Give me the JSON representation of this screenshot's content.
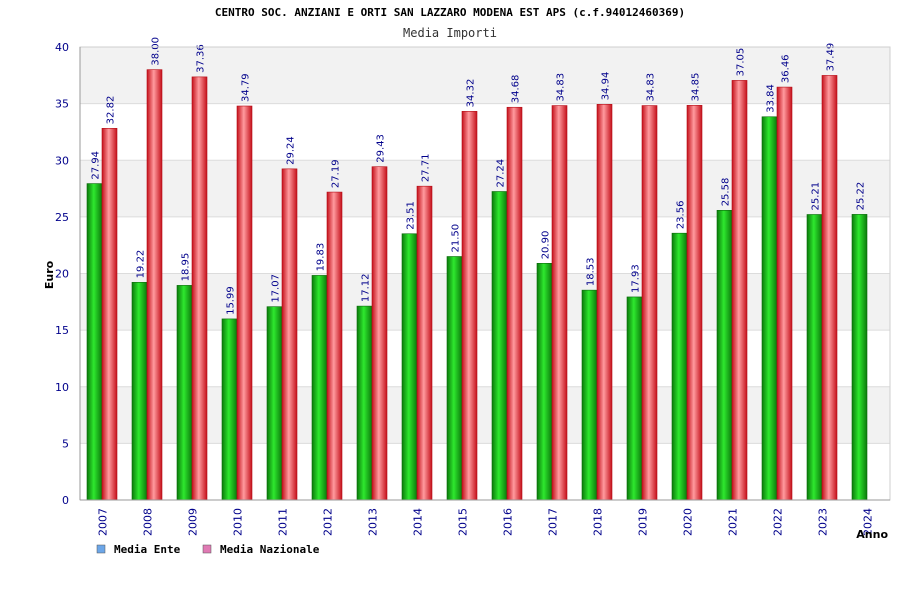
{
  "chart_data": {
    "type": "bar",
    "title": "CENTRO SOC. ANZIANI E ORTI SAN LAZZARO MODENA EST APS (c.f.94012460369)",
    "subtitle": "Media Importi",
    "xlabel": "Anno",
    "ylabel": "Euro",
    "ylim": [
      0,
      40
    ],
    "yticks": [
      0,
      5,
      10,
      15,
      20,
      25,
      30,
      35,
      40
    ],
    "grid": true,
    "legend_position": "bottom-left",
    "categories": [
      "2007",
      "2008",
      "2009",
      "2010",
      "2011",
      "2012",
      "2013",
      "2014",
      "2015",
      "2016",
      "2017",
      "2018",
      "2019",
      "2020",
      "2021",
      "2022",
      "2023",
      "2024"
    ],
    "series": [
      {
        "name": "Media Ente",
        "color": "#1aa31a",
        "legend_color": "#6ca6e8",
        "values": [
          27.94,
          19.22,
          18.95,
          15.99,
          17.07,
          19.83,
          17.12,
          23.51,
          21.5,
          27.24,
          20.9,
          18.53,
          17.93,
          23.56,
          25.58,
          33.84,
          25.21,
          25.22
        ],
        "labels": [
          "27.94",
          "19.22",
          "18.95",
          "15.99",
          "17.07",
          "19.83",
          "17.12",
          "23.51",
          "21.50",
          "27.24",
          "20.90",
          "18.53",
          "17.93",
          "23.56",
          "25.58",
          "33.84",
          "25.21",
          "25.22"
        ]
      },
      {
        "name": "Media Nazionale",
        "color": "#e8202a",
        "legend_color": "#e07ab4",
        "values": [
          32.82,
          38.0,
          37.36,
          34.79,
          29.24,
          27.19,
          29.43,
          27.71,
          34.32,
          34.68,
          34.83,
          34.94,
          34.83,
          34.85,
          37.05,
          36.46,
          37.49,
          null
        ],
        "labels": [
          "32.82",
          "38.00",
          "37.36",
          "34.79",
          "29.24",
          "27.19",
          "29.43",
          "27.71",
          "34.32",
          "34.68",
          "34.83",
          "34.94",
          "34.83",
          "34.85",
          "37.05",
          "36.46",
          "37.49",
          ""
        ]
      }
    ]
  }
}
